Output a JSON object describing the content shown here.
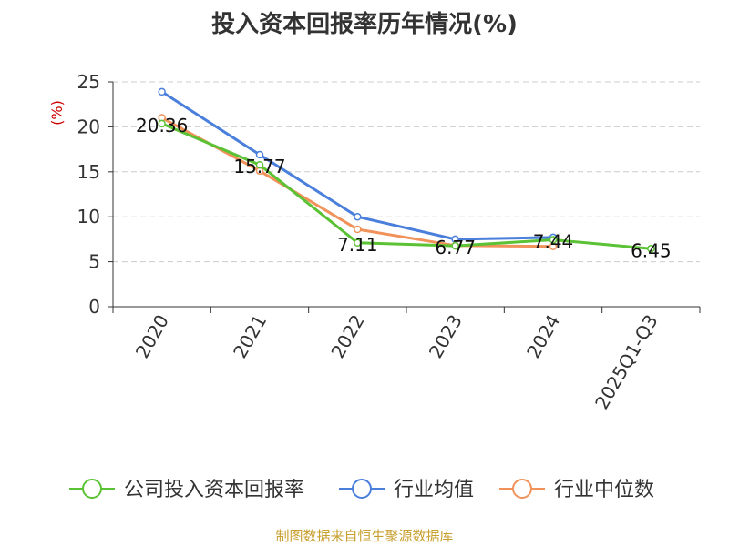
{
  "chart_data": {
    "type": "line",
    "title": "投入资本回报率历年情况(%)",
    "ylabel": "(%)",
    "xlabel": "",
    "categories": [
      "2020",
      "2021",
      "2022",
      "2023",
      "2024",
      "2025Q1-Q3"
    ],
    "ylim": [
      0,
      25
    ],
    "yticks": [
      0,
      5,
      10,
      15,
      20,
      25
    ],
    "grid": true,
    "legend_position": "bottom",
    "series": [
      {
        "name": "公司投入资本回报率",
        "color": "#5ac234",
        "values": [
          20.36,
          15.77,
          7.11,
          6.77,
          7.44,
          6.45
        ],
        "labels": [
          "20.36",
          "15.77",
          "7.11",
          "6.77",
          "7.44",
          "6.45"
        ]
      },
      {
        "name": "行业均值",
        "color": "#4a7fdc",
        "values": [
          23.9,
          16.9,
          10.0,
          7.5,
          7.7,
          null
        ]
      },
      {
        "name": "行业中位数",
        "color": "#f0925a",
        "values": [
          21.0,
          15.1,
          8.6,
          6.8,
          6.7,
          null
        ]
      }
    ]
  },
  "source_text": "制图数据来自恒生聚源数据库"
}
